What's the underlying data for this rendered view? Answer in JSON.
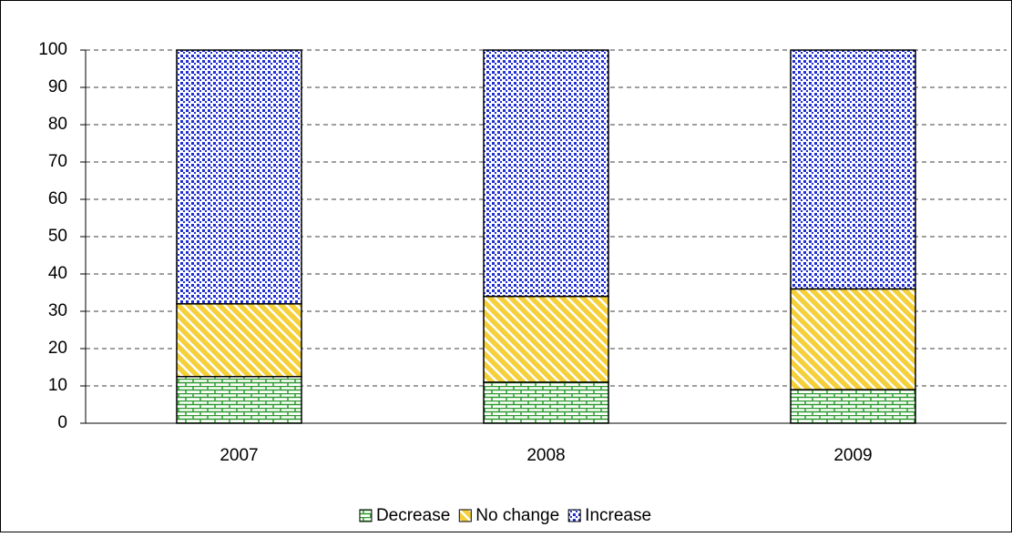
{
  "chart_data": {
    "type": "bar",
    "stacked": true,
    "categories": [
      "2007",
      "2008",
      "2009"
    ],
    "series": [
      {
        "name": "Decrease",
        "color": "#2e9a2e",
        "values": [
          12.5,
          11,
          9
        ]
      },
      {
        "name": "No change",
        "color": "#f5d03a",
        "values": [
          19.5,
          23,
          27
        ]
      },
      {
        "name": "Increase",
        "color": "#1f2fd0",
        "values": [
          68,
          66,
          64
        ]
      }
    ],
    "ylim": [
      0,
      100
    ],
    "yticks": [
      0,
      10,
      20,
      30,
      40,
      50,
      60,
      70,
      80,
      90,
      100
    ],
    "grid": true,
    "legend": "bottom"
  }
}
